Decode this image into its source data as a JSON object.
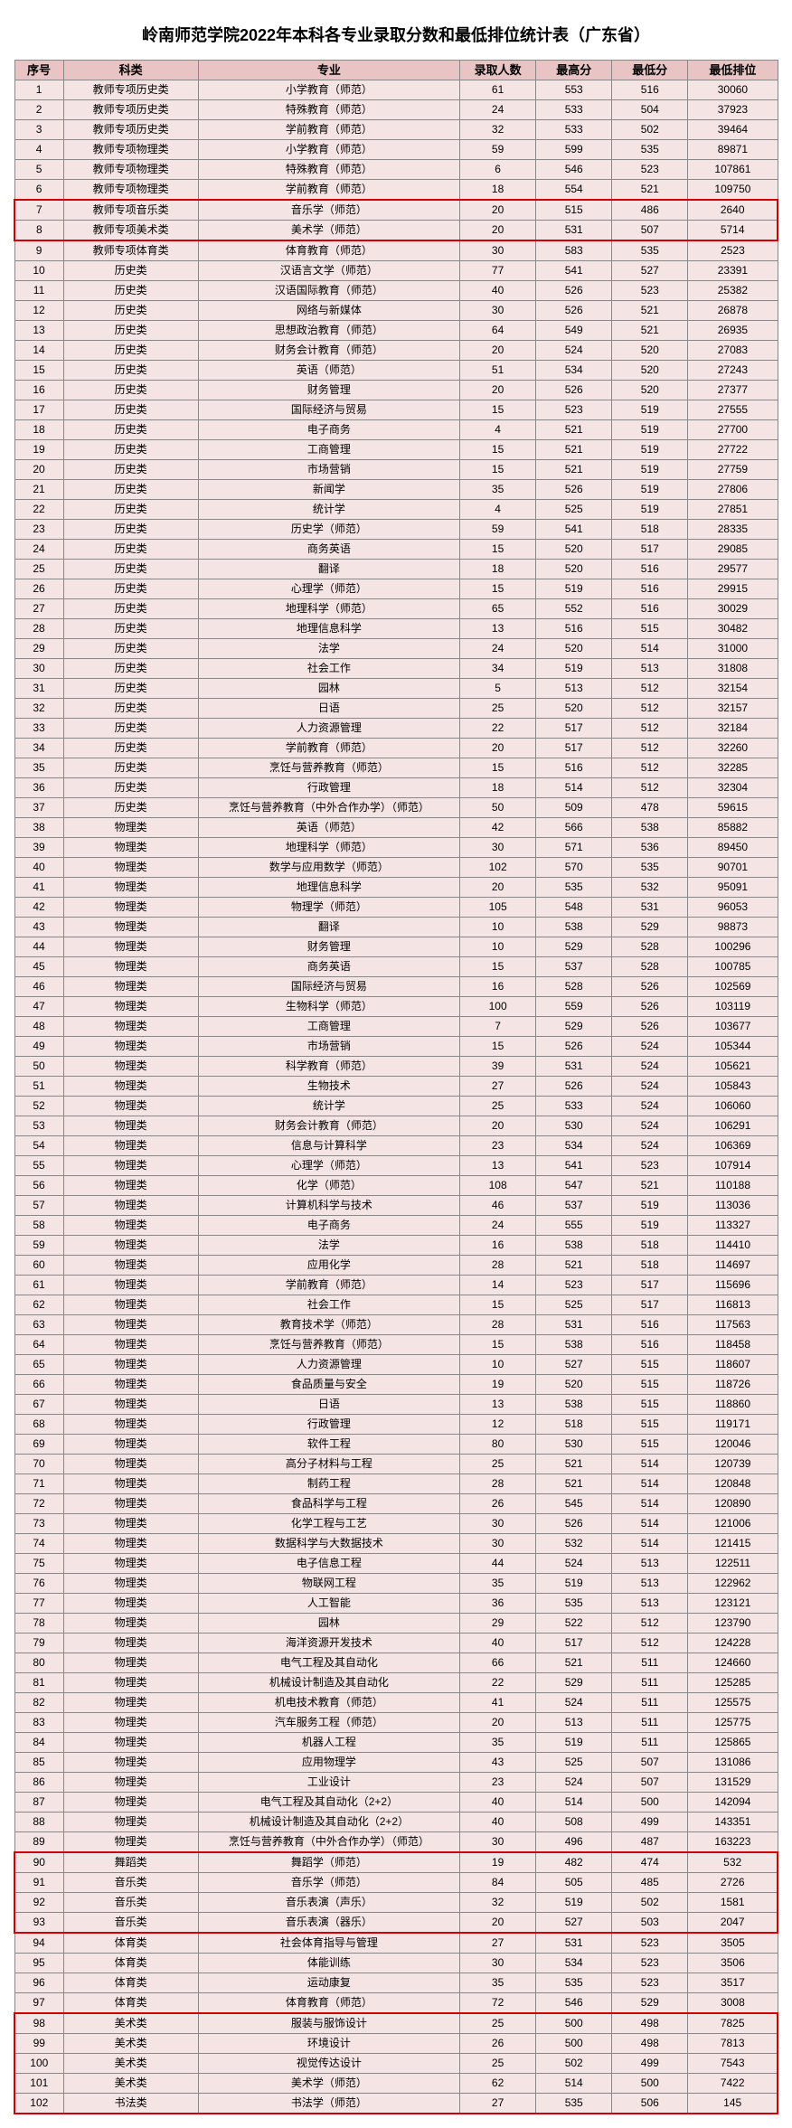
{
  "title": "岭南师范学院2022年本科各专业录取分数和最低排位统计表（广东省）",
  "headers": [
    "序号",
    "科类",
    "专业",
    "录取人数",
    "最高分",
    "最低分",
    "最低排位"
  ],
  "highlight_ranges": [
    [
      7,
      8
    ],
    [
      90,
      93
    ],
    [
      98,
      102
    ]
  ],
  "colors": {
    "header_bg": "#e8c4c4",
    "row_bg": "#f5e4e4",
    "highlight_border": "#d00000"
  },
  "rows": [
    [
      1,
      "教师专项历史类",
      "小学教育（师范）",
      61,
      553,
      516,
      30060
    ],
    [
      2,
      "教师专项历史类",
      "特殊教育（师范）",
      24,
      533,
      504,
      37923
    ],
    [
      3,
      "教师专项历史类",
      "学前教育（师范）",
      32,
      533,
      502,
      39464
    ],
    [
      4,
      "教师专项物理类",
      "小学教育（师范）",
      59,
      599,
      535,
      89871
    ],
    [
      5,
      "教师专项物理类",
      "特殊教育（师范）",
      6,
      546,
      523,
      107861
    ],
    [
      6,
      "教师专项物理类",
      "学前教育（师范）",
      18,
      554,
      521,
      109750
    ],
    [
      7,
      "教师专项音乐类",
      "音乐学（师范）",
      20,
      515,
      486,
      2640
    ],
    [
      8,
      "教师专项美术类",
      "美术学（师范）",
      20,
      531,
      507,
      5714
    ],
    [
      9,
      "教师专项体育类",
      "体育教育（师范）",
      30,
      583,
      535,
      2523
    ],
    [
      10,
      "历史类",
      "汉语言文学（师范）",
      77,
      541,
      527,
      23391
    ],
    [
      11,
      "历史类",
      "汉语国际教育（师范）",
      40,
      526,
      523,
      25382
    ],
    [
      12,
      "历史类",
      "网络与新媒体",
      30,
      526,
      521,
      26878
    ],
    [
      13,
      "历史类",
      "思想政治教育（师范）",
      64,
      549,
      521,
      26935
    ],
    [
      14,
      "历史类",
      "财务会计教育（师范）",
      20,
      524,
      520,
      27083
    ],
    [
      15,
      "历史类",
      "英语（师范）",
      51,
      534,
      520,
      27243
    ],
    [
      16,
      "历史类",
      "财务管理",
      20,
      526,
      520,
      27377
    ],
    [
      17,
      "历史类",
      "国际经济与贸易",
      15,
      523,
      519,
      27555
    ],
    [
      18,
      "历史类",
      "电子商务",
      4,
      521,
      519,
      27700
    ],
    [
      19,
      "历史类",
      "工商管理",
      15,
      521,
      519,
      27722
    ],
    [
      20,
      "历史类",
      "市场营销",
      15,
      521,
      519,
      27759
    ],
    [
      21,
      "历史类",
      "新闻学",
      35,
      526,
      519,
      27806
    ],
    [
      22,
      "历史类",
      "统计学",
      4,
      525,
      519,
      27851
    ],
    [
      23,
      "历史类",
      "历史学（师范）",
      59,
      541,
      518,
      28335
    ],
    [
      24,
      "历史类",
      "商务英语",
      15,
      520,
      517,
      29085
    ],
    [
      25,
      "历史类",
      "翻译",
      18,
      520,
      516,
      29577
    ],
    [
      26,
      "历史类",
      "心理学（师范）",
      15,
      519,
      516,
      29915
    ],
    [
      27,
      "历史类",
      "地理科学（师范）",
      65,
      552,
      516,
      30029
    ],
    [
      28,
      "历史类",
      "地理信息科学",
      13,
      516,
      515,
      30482
    ],
    [
      29,
      "历史类",
      "法学",
      24,
      520,
      514,
      31000
    ],
    [
      30,
      "历史类",
      "社会工作",
      34,
      519,
      513,
      31808
    ],
    [
      31,
      "历史类",
      "园林",
      5,
      513,
      512,
      32154
    ],
    [
      32,
      "历史类",
      "日语",
      25,
      520,
      512,
      32157
    ],
    [
      33,
      "历史类",
      "人力资源管理",
      22,
      517,
      512,
      32184
    ],
    [
      34,
      "历史类",
      "学前教育（师范）",
      20,
      517,
      512,
      32260
    ],
    [
      35,
      "历史类",
      "烹饪与营养教育（师范）",
      15,
      516,
      512,
      32285
    ],
    [
      36,
      "历史类",
      "行政管理",
      18,
      514,
      512,
      32304
    ],
    [
      37,
      "历史类",
      "烹饪与营养教育（中外合作办学）（师范）",
      50,
      509,
      478,
      59615
    ],
    [
      38,
      "物理类",
      "英语（师范）",
      42,
      566,
      538,
      85882
    ],
    [
      39,
      "物理类",
      "地理科学（师范）",
      30,
      571,
      536,
      89450
    ],
    [
      40,
      "物理类",
      "数学与应用数学（师范）",
      102,
      570,
      535,
      90701
    ],
    [
      41,
      "物理类",
      "地理信息科学",
      20,
      535,
      532,
      95091
    ],
    [
      42,
      "物理类",
      "物理学（师范）",
      105,
      548,
      531,
      96053
    ],
    [
      43,
      "物理类",
      "翻译",
      10,
      538,
      529,
      98873
    ],
    [
      44,
      "物理类",
      "财务管理",
      10,
      529,
      528,
      100296
    ],
    [
      45,
      "物理类",
      "商务英语",
      15,
      537,
      528,
      100785
    ],
    [
      46,
      "物理类",
      "国际经济与贸易",
      16,
      528,
      526,
      102569
    ],
    [
      47,
      "物理类",
      "生物科学（师范）",
      100,
      559,
      526,
      103119
    ],
    [
      48,
      "物理类",
      "工商管理",
      7,
      529,
      526,
      103677
    ],
    [
      49,
      "物理类",
      "市场营销",
      15,
      526,
      524,
      105344
    ],
    [
      50,
      "物理类",
      "科学教育（师范）",
      39,
      531,
      524,
      105621
    ],
    [
      51,
      "物理类",
      "生物技术",
      27,
      526,
      524,
      105843
    ],
    [
      52,
      "物理类",
      "统计学",
      25,
      533,
      524,
      106060
    ],
    [
      53,
      "物理类",
      "财务会计教育（师范）",
      20,
      530,
      524,
      106291
    ],
    [
      54,
      "物理类",
      "信息与计算科学",
      23,
      534,
      524,
      106369
    ],
    [
      55,
      "物理类",
      "心理学（师范）",
      13,
      541,
      523,
      107914
    ],
    [
      56,
      "物理类",
      "化学（师范）",
      108,
      547,
      521,
      110188
    ],
    [
      57,
      "物理类",
      "计算机科学与技术",
      46,
      537,
      519,
      113036
    ],
    [
      58,
      "物理类",
      "电子商务",
      24,
      555,
      519,
      113327
    ],
    [
      59,
      "物理类",
      "法学",
      16,
      538,
      518,
      114410
    ],
    [
      60,
      "物理类",
      "应用化学",
      28,
      521,
      518,
      114697
    ],
    [
      61,
      "物理类",
      "学前教育（师范）",
      14,
      523,
      517,
      115696
    ],
    [
      62,
      "物理类",
      "社会工作",
      15,
      525,
      517,
      116813
    ],
    [
      63,
      "物理类",
      "教育技术学（师范）",
      28,
      531,
      516,
      117563
    ],
    [
      64,
      "物理类",
      "烹饪与营养教育（师范）",
      15,
      538,
      516,
      118458
    ],
    [
      65,
      "物理类",
      "人力资源管理",
      10,
      527,
      515,
      118607
    ],
    [
      66,
      "物理类",
      "食品质量与安全",
      19,
      520,
      515,
      118726
    ],
    [
      67,
      "物理类",
      "日语",
      13,
      538,
      515,
      118860
    ],
    [
      68,
      "物理类",
      "行政管理",
      12,
      518,
      515,
      119171
    ],
    [
      69,
      "物理类",
      "软件工程",
      80,
      530,
      515,
      120046
    ],
    [
      70,
      "物理类",
      "高分子材料与工程",
      25,
      521,
      514,
      120739
    ],
    [
      71,
      "物理类",
      "制药工程",
      28,
      521,
      514,
      120848
    ],
    [
      72,
      "物理类",
      "食品科学与工程",
      26,
      545,
      514,
      120890
    ],
    [
      73,
      "物理类",
      "化学工程与工艺",
      30,
      526,
      514,
      121006
    ],
    [
      74,
      "物理类",
      "数据科学与大数据技术",
      30,
      532,
      514,
      121415
    ],
    [
      75,
      "物理类",
      "电子信息工程",
      44,
      524,
      513,
      122511
    ],
    [
      76,
      "物理类",
      "物联网工程",
      35,
      519,
      513,
      122962
    ],
    [
      77,
      "物理类",
      "人工智能",
      36,
      535,
      513,
      123121
    ],
    [
      78,
      "物理类",
      "园林",
      29,
      522,
      512,
      123790
    ],
    [
      79,
      "物理类",
      "海洋资源开发技术",
      40,
      517,
      512,
      124228
    ],
    [
      80,
      "物理类",
      "电气工程及其自动化",
      66,
      521,
      511,
      124660
    ],
    [
      81,
      "物理类",
      "机械设计制造及其自动化",
      22,
      529,
      511,
      125285
    ],
    [
      82,
      "物理类",
      "机电技术教育（师范）",
      41,
      524,
      511,
      125575
    ],
    [
      83,
      "物理类",
      "汽车服务工程（师范）",
      20,
      513,
      511,
      125775
    ],
    [
      84,
      "物理类",
      "机器人工程",
      35,
      519,
      511,
      125865
    ],
    [
      85,
      "物理类",
      "应用物理学",
      43,
      525,
      507,
      131086
    ],
    [
      86,
      "物理类",
      "工业设计",
      23,
      524,
      507,
      131529
    ],
    [
      87,
      "物理类",
      "电气工程及其自动化（2+2）",
      40,
      514,
      500,
      142094
    ],
    [
      88,
      "物理类",
      "机械设计制造及其自动化（2+2）",
      40,
      508,
      499,
      143351
    ],
    [
      89,
      "物理类",
      "烹饪与营养教育（中外合作办学）（师范）",
      30,
      496,
      487,
      163223
    ],
    [
      90,
      "舞蹈类",
      "舞蹈学（师范）",
      19,
      482,
      474,
      532
    ],
    [
      91,
      "音乐类",
      "音乐学（师范）",
      84,
      505,
      485,
      2726
    ],
    [
      92,
      "音乐类",
      "音乐表演（声乐）",
      32,
      519,
      502,
      1581
    ],
    [
      93,
      "音乐类",
      "音乐表演（器乐）",
      20,
      527,
      503,
      2047
    ],
    [
      94,
      "体育类",
      "社会体育指导与管理",
      27,
      531,
      523,
      3505
    ],
    [
      95,
      "体育类",
      "体能训练",
      30,
      534,
      523,
      3506
    ],
    [
      96,
      "体育类",
      "运动康复",
      35,
      535,
      523,
      3517
    ],
    [
      97,
      "体育类",
      "体育教育（师范）",
      72,
      546,
      529,
      3008
    ],
    [
      98,
      "美术类",
      "服装与服饰设计",
      25,
      500,
      498,
      7825
    ],
    [
      99,
      "美术类",
      "环境设计",
      26,
      500,
      498,
      7813
    ],
    [
      100,
      "美术类",
      "视觉传达设计",
      25,
      502,
      499,
      7543
    ],
    [
      101,
      "美术类",
      "美术学（师范）",
      62,
      514,
      500,
      7422
    ],
    [
      102,
      "书法类",
      "书法学（师范）",
      27,
      535,
      506,
      145
    ]
  ]
}
